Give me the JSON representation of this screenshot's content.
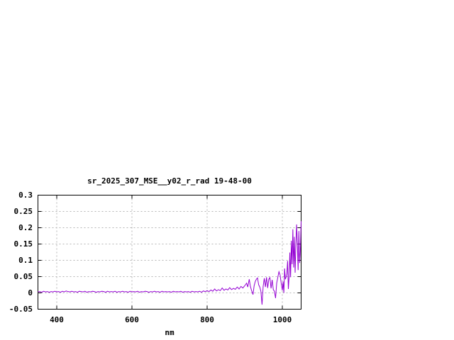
{
  "chart": {
    "title": "sr_2025_307_MSE__y02_r_rad 19-48-00",
    "xlabel": "nm",
    "colors": {
      "line": "#9400d3",
      "grid": "#b4b4b4",
      "border": "#000000",
      "background": "#ffffff",
      "text": "#000000"
    }
  },
  "chart_data": {
    "type": "line",
    "title": "sr_2025_307_MSE__y02_r_rad 19-48-00",
    "xlabel": "nm",
    "ylabel": "",
    "xlim": [
      350,
      1050
    ],
    "ylim": [
      -0.05,
      0.3
    ],
    "x_ticks": [
      400,
      600,
      800,
      1000
    ],
    "x_tick_labels": [
      "400",
      "600",
      "800",
      "1000"
    ],
    "y_ticks": [
      -0.05,
      0,
      0.05,
      0.1,
      0.15,
      0.2,
      0.25,
      0.3
    ],
    "y_tick_labels": [
      "-0.05",
      "0",
      "0.05",
      "0.1",
      "0.15",
      "0.2",
      "0.25",
      "0.3"
    ],
    "grid": true,
    "legend_position": "none",
    "series": [
      {
        "name": "sr_2025_307_MSE__y02_r_rad",
        "color": "#9400d3",
        "points": [
          [
            350,
            0.003
          ],
          [
            355,
            0.004
          ],
          [
            360,
            0.002
          ],
          [
            365,
            0.005
          ],
          [
            370,
            0.003
          ],
          [
            375,
            0.004
          ],
          [
            380,
            0.002
          ],
          [
            385,
            0.004
          ],
          [
            390,
            0.003
          ],
          [
            395,
            0.005
          ],
          [
            400,
            0.003
          ],
          [
            405,
            0.004
          ],
          [
            410,
            0.002
          ],
          [
            415,
            0.005
          ],
          [
            420,
            0.003
          ],
          [
            425,
            0.006
          ],
          [
            430,
            0.004
          ],
          [
            435,
            0.003
          ],
          [
            440,
            0.005
          ],
          [
            445,
            0.003
          ],
          [
            450,
            0.004
          ],
          [
            455,
            0.002
          ],
          [
            460,
            0.005
          ],
          [
            465,
            0.004
          ],
          [
            470,
            0.003
          ],
          [
            475,
            0.005
          ],
          [
            480,
            0.002
          ],
          [
            485,
            0.004
          ],
          [
            490,
            0.003
          ],
          [
            495,
            0.005
          ],
          [
            500,
            0.004
          ],
          [
            505,
            0.002
          ],
          [
            510,
            0.004
          ],
          [
            515,
            0.003
          ],
          [
            520,
            0.005
          ],
          [
            525,
            0.004
          ],
          [
            530,
            0.002
          ],
          [
            535,
            0.005
          ],
          [
            540,
            0.003
          ],
          [
            545,
            0.004
          ],
          [
            550,
            0.003
          ],
          [
            555,
            0.005
          ],
          [
            560,
            0.002
          ],
          [
            565,
            0.004
          ],
          [
            570,
            0.003
          ],
          [
            575,
            0.005
          ],
          [
            580,
            0.003
          ],
          [
            585,
            0.004
          ],
          [
            590,
            0.002
          ],
          [
            595,
            0.005
          ],
          [
            600,
            0.003
          ],
          [
            605,
            0.004
          ],
          [
            610,
            0.003
          ],
          [
            615,
            0.005
          ],
          [
            620,
            0.002
          ],
          [
            625,
            0.004
          ],
          [
            630,
            0.003
          ],
          [
            635,
            0.005
          ],
          [
            640,
            0.004
          ],
          [
            645,
            0.002
          ],
          [
            650,
            0.004
          ],
          [
            655,
            0.003
          ],
          [
            660,
            0.005
          ],
          [
            665,
            0.003
          ],
          [
            670,
            0.004
          ],
          [
            675,
            0.002
          ],
          [
            680,
            0.005
          ],
          [
            685,
            0.003
          ],
          [
            690,
            0.004
          ],
          [
            695,
            0.003
          ],
          [
            700,
            0.004
          ],
          [
            705,
            0.002
          ],
          [
            710,
            0.005
          ],
          [
            715,
            0.003
          ],
          [
            720,
            0.004
          ],
          [
            725,
            0.003
          ],
          [
            730,
            0.005
          ],
          [
            735,
            0.002
          ],
          [
            740,
            0.004
          ],
          [
            745,
            0.003
          ],
          [
            750,
            0.004
          ],
          [
            755,
            0.002
          ],
          [
            760,
            0.005
          ],
          [
            765,
            0.003
          ],
          [
            770,
            0.004
          ],
          [
            775,
            0.003
          ],
          [
            780,
            0.005
          ],
          [
            785,
            0.002
          ],
          [
            790,
            0.006
          ],
          [
            795,
            0.004
          ],
          [
            800,
            0.007
          ],
          [
            805,
            0.004
          ],
          [
            810,
            0.009
          ],
          [
            815,
            0.005
          ],
          [
            820,
            0.012
          ],
          [
            825,
            0.006
          ],
          [
            830,
            0.01
          ],
          [
            835,
            0.007
          ],
          [
            840,
            0.015
          ],
          [
            845,
            0.008
          ],
          [
            850,
            0.012
          ],
          [
            855,
            0.009
          ],
          [
            860,
            0.016
          ],
          [
            865,
            0.01
          ],
          [
            870,
            0.014
          ],
          [
            875,
            0.011
          ],
          [
            880,
            0.018
          ],
          [
            885,
            0.012
          ],
          [
            890,
            0.02
          ],
          [
            895,
            0.015
          ],
          [
            900,
            0.022
          ],
          [
            905,
            0.03
          ],
          [
            908,
            0.018
          ],
          [
            912,
            0.042
          ],
          [
            915,
            0.02
          ],
          [
            918,
            0.008
          ],
          [
            922,
            -0.005
          ],
          [
            925,
            0.022
          ],
          [
            928,
            0.035
          ],
          [
            931,
            0.042
          ],
          [
            934,
            0.046
          ],
          [
            937,
            0.025
          ],
          [
            940,
            0.018
          ],
          [
            943,
            0.005
          ],
          [
            946,
            -0.036
          ],
          [
            949,
            0.02
          ],
          [
            952,
            0.045
          ],
          [
            955,
            0.018
          ],
          [
            958,
            0.048
          ],
          [
            961,
            0.015
          ],
          [
            964,
            0.042
          ],
          [
            967,
            0.047
          ],
          [
            970,
            0.014
          ],
          [
            973,
            0.04
          ],
          [
            976,
            0.01
          ],
          [
            979,
            0.005
          ],
          [
            982,
            -0.016
          ],
          [
            985,
            0.03
          ],
          [
            988,
            0.048
          ],
          [
            991,
            0.065
          ],
          [
            994,
            0.055
          ],
          [
            997,
            0.03
          ],
          [
            1000,
            0.008
          ],
          [
            1002,
            0.035
          ],
          [
            1004,
            0.0
          ],
          [
            1006,
            0.075
          ],
          [
            1008,
            0.042
          ],
          [
            1010,
            0.048
          ],
          [
            1012,
            0.06
          ],
          [
            1014,
            0.098
          ],
          [
            1016,
            0.012
          ],
          [
            1018,
            0.05
          ],
          [
            1020,
            0.124
          ],
          [
            1022,
            0.048
          ],
          [
            1024,
            0.16
          ],
          [
            1026,
            0.088
          ],
          [
            1028,
            0.195
          ],
          [
            1030,
            0.078
          ],
          [
            1032,
            0.172
          ],
          [
            1034,
            0.062
          ],
          [
            1036,
            0.145
          ],
          [
            1038,
            0.21
          ],
          [
            1040,
            0.152
          ],
          [
            1042,
            0.07
          ],
          [
            1044,
            0.19
          ],
          [
            1046,
            0.092
          ],
          [
            1048,
            0.13
          ],
          [
            1050,
            0.22
          ]
        ]
      }
    ]
  }
}
